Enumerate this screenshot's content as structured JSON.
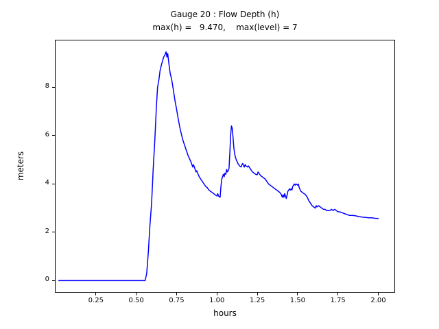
{
  "chart_data": {
    "type": "line",
    "title_line1": "Gauge 20 : Flow Depth (h)",
    "title_line2": "max(h) =   9.470,    max(level) = 7",
    "xlabel": "hours",
    "ylabel": "meters",
    "xlim": [
      0.0,
      2.1
    ],
    "ylim": [
      -0.47,
      9.94
    ],
    "xticks": [
      0.25,
      0.5,
      0.75,
      1.0,
      1.25,
      1.5,
      1.75,
      2.0
    ],
    "xtick_labels": [
      "0.25",
      "0.50",
      "0.75",
      "1.00",
      "1.25",
      "1.50",
      "1.75",
      "2.00"
    ],
    "yticks": [
      0,
      2,
      4,
      6,
      8
    ],
    "ytick_labels": [
      "0",
      "2",
      "4",
      "6",
      "8"
    ],
    "grid": false,
    "legend": null,
    "max_h": 9.47,
    "max_level": 7,
    "series": [
      {
        "name": "flow-depth",
        "color": "#0000ff",
        "points": [
          [
            0.02,
            0.0
          ],
          [
            0.1,
            0.0
          ],
          [
            0.2,
            0.0
          ],
          [
            0.3,
            0.0
          ],
          [
            0.4,
            0.0
          ],
          [
            0.5,
            0.0
          ],
          [
            0.555,
            0.0
          ],
          [
            0.565,
            0.3
          ],
          [
            0.575,
            1.2
          ],
          [
            0.585,
            2.3
          ],
          [
            0.595,
            3.2
          ],
          [
            0.605,
            4.6
          ],
          [
            0.615,
            5.8
          ],
          [
            0.625,
            7.2
          ],
          [
            0.632,
            8.0
          ],
          [
            0.64,
            8.3
          ],
          [
            0.648,
            8.7
          ],
          [
            0.655,
            8.9
          ],
          [
            0.663,
            9.1
          ],
          [
            0.67,
            9.25
          ],
          [
            0.678,
            9.35
          ],
          [
            0.685,
            9.47
          ],
          [
            0.69,
            9.25
          ],
          [
            0.695,
            9.4
          ],
          [
            0.7,
            9.1
          ],
          [
            0.705,
            8.85
          ],
          [
            0.71,
            8.6
          ],
          [
            0.715,
            8.45
          ],
          [
            0.72,
            8.3
          ],
          [
            0.73,
            7.9
          ],
          [
            0.74,
            7.45
          ],
          [
            0.75,
            7.1
          ],
          [
            0.76,
            6.7
          ],
          [
            0.77,
            6.35
          ],
          [
            0.78,
            6.05
          ],
          [
            0.79,
            5.8
          ],
          [
            0.8,
            5.6
          ],
          [
            0.81,
            5.4
          ],
          [
            0.82,
            5.2
          ],
          [
            0.83,
            5.05
          ],
          [
            0.84,
            4.9
          ],
          [
            0.85,
            4.7
          ],
          [
            0.855,
            4.8
          ],
          [
            0.86,
            4.7
          ],
          [
            0.87,
            4.5
          ],
          [
            0.875,
            4.55
          ],
          [
            0.88,
            4.45
          ],
          [
            0.89,
            4.3
          ],
          [
            0.9,
            4.2
          ],
          [
            0.91,
            4.1
          ],
          [
            0.92,
            4.0
          ],
          [
            0.93,
            3.9
          ],
          [
            0.94,
            3.85
          ],
          [
            0.95,
            3.75
          ],
          [
            0.96,
            3.7
          ],
          [
            0.97,
            3.65
          ],
          [
            0.98,
            3.6
          ],
          [
            0.99,
            3.55
          ],
          [
            1.0,
            3.5
          ],
          [
            1.005,
            3.6
          ],
          [
            1.01,
            3.5
          ],
          [
            1.02,
            3.45
          ],
          [
            1.025,
            3.9
          ],
          [
            1.03,
            4.2
          ],
          [
            1.04,
            4.4
          ],
          [
            1.045,
            4.3
          ],
          [
            1.05,
            4.45
          ],
          [
            1.055,
            4.4
          ],
          [
            1.06,
            4.6
          ],
          [
            1.065,
            4.5
          ],
          [
            1.07,
            4.55
          ],
          [
            1.075,
            4.65
          ],
          [
            1.08,
            5.3
          ],
          [
            1.085,
            6.0
          ],
          [
            1.09,
            6.4
          ],
          [
            1.095,
            6.3
          ],
          [
            1.1,
            5.9
          ],
          [
            1.105,
            5.5
          ],
          [
            1.11,
            5.25
          ],
          [
            1.115,
            5.1
          ],
          [
            1.12,
            5.0
          ],
          [
            1.13,
            4.85
          ],
          [
            1.14,
            4.75
          ],
          [
            1.15,
            4.7
          ],
          [
            1.155,
            4.8
          ],
          [
            1.16,
            4.85
          ],
          [
            1.165,
            4.75
          ],
          [
            1.17,
            4.7
          ],
          [
            1.175,
            4.8
          ],
          [
            1.18,
            4.75
          ],
          [
            1.19,
            4.7
          ],
          [
            1.195,
            4.75
          ],
          [
            1.2,
            4.7
          ],
          [
            1.21,
            4.6
          ],
          [
            1.22,
            4.5
          ],
          [
            1.23,
            4.45
          ],
          [
            1.24,
            4.4
          ],
          [
            1.25,
            4.38
          ],
          [
            1.255,
            4.5
          ],
          [
            1.26,
            4.45
          ],
          [
            1.27,
            4.35
          ],
          [
            1.28,
            4.3
          ],
          [
            1.29,
            4.25
          ],
          [
            1.3,
            4.2
          ],
          [
            1.31,
            4.1
          ],
          [
            1.32,
            4.0
          ],
          [
            1.33,
            3.95
          ],
          [
            1.34,
            3.9
          ],
          [
            1.35,
            3.85
          ],
          [
            1.36,
            3.8
          ],
          [
            1.37,
            3.75
          ],
          [
            1.38,
            3.7
          ],
          [
            1.39,
            3.65
          ],
          [
            1.4,
            3.55
          ],
          [
            1.405,
            3.45
          ],
          [
            1.41,
            3.55
          ],
          [
            1.415,
            3.45
          ],
          [
            1.42,
            3.6
          ],
          [
            1.425,
            3.5
          ],
          [
            1.43,
            3.4
          ],
          [
            1.435,
            3.55
          ],
          [
            1.44,
            3.7
          ],
          [
            1.45,
            3.8
          ],
          [
            1.455,
            3.75
          ],
          [
            1.46,
            3.8
          ],
          [
            1.465,
            3.75
          ],
          [
            1.47,
            3.9
          ],
          [
            1.48,
            4.0
          ],
          [
            1.485,
            3.95
          ],
          [
            1.49,
            4.0
          ],
          [
            1.5,
            3.95
          ],
          [
            1.505,
            4.0
          ],
          [
            1.51,
            3.85
          ],
          [
            1.52,
            3.7
          ],
          [
            1.53,
            3.65
          ],
          [
            1.54,
            3.6
          ],
          [
            1.55,
            3.55
          ],
          [
            1.56,
            3.45
          ],
          [
            1.57,
            3.3
          ],
          [
            1.58,
            3.2
          ],
          [
            1.59,
            3.1
          ],
          [
            1.6,
            3.05
          ],
          [
            1.61,
            3.0
          ],
          [
            1.615,
            3.1
          ],
          [
            1.62,
            3.05
          ],
          [
            1.63,
            3.1
          ],
          [
            1.64,
            3.05
          ],
          [
            1.65,
            3.0
          ],
          [
            1.66,
            2.95
          ],
          [
            1.67,
            2.95
          ],
          [
            1.68,
            2.9
          ],
          [
            1.7,
            2.9
          ],
          [
            1.71,
            2.95
          ],
          [
            1.72,
            2.9
          ],
          [
            1.73,
            2.95
          ],
          [
            1.74,
            2.9
          ],
          [
            1.75,
            2.85
          ],
          [
            1.76,
            2.85
          ],
          [
            1.78,
            2.8
          ],
          [
            1.8,
            2.75
          ],
          [
            1.82,
            2.7
          ],
          [
            1.84,
            2.7
          ],
          [
            1.86,
            2.68
          ],
          [
            1.88,
            2.65
          ],
          [
            1.9,
            2.63
          ],
          [
            1.92,
            2.62
          ],
          [
            1.94,
            2.6
          ],
          [
            1.96,
            2.6
          ],
          [
            1.98,
            2.58
          ],
          [
            2.0,
            2.57
          ]
        ]
      }
    ]
  }
}
